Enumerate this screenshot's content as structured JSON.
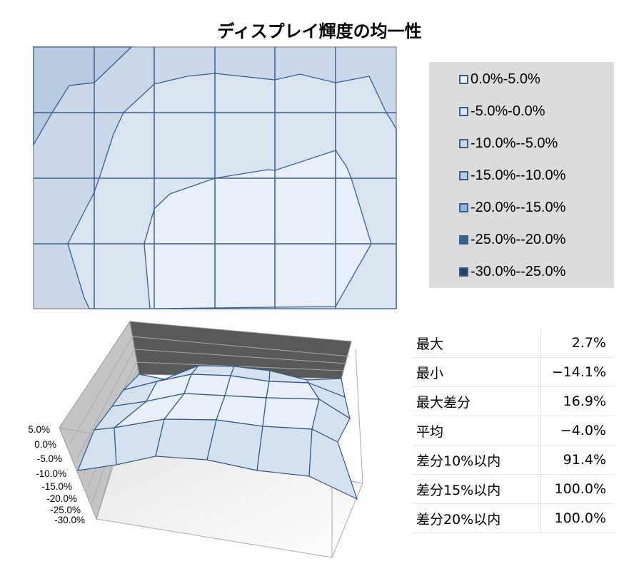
{
  "title": "ディスプレイ輝度の均一性",
  "chart_data": [
    {
      "type": "contour",
      "grid": true,
      "legend_position": "right",
      "legend": [
        {
          "label": "0.0%-5.0%",
          "color": "#eef3fa"
        },
        {
          "label": "-5.0%-0.0%",
          "color": "#dce6f2"
        },
        {
          "label": "-10.0%--5.0%",
          "color": "#cad8ea"
        },
        {
          "label": "-15.0%--10.0%",
          "color": "#b9cde5"
        },
        {
          "label": "-20.0%--15.0%",
          "color": "#8eb4e3"
        },
        {
          "label": "-25.0%--20.0%",
          "color": "#376092"
        },
        {
          "label": "-30.0%--25.0%",
          "color": "#254061"
        }
      ]
    },
    {
      "type": "surface",
      "z_ticks": [
        "5.0%",
        "0.0%",
        "-5.0%",
        "-10.0%",
        "-15.0%",
        "-20.0%",
        "-25.0%",
        "-30.0%"
      ],
      "zlim": [
        -30,
        5
      ]
    }
  ],
  "stats": [
    {
      "label": "最大",
      "value": "2.7%"
    },
    {
      "label": "最小",
      "value": "−14.1%"
    },
    {
      "label": "最大差分",
      "value": "16.9%"
    },
    {
      "label": "平均",
      "value": "−4.0%"
    },
    {
      "label": "差分10%以内",
      "value": "91.4%"
    },
    {
      "label": "差分15%以内",
      "value": "100.0%"
    },
    {
      "label": "差分20%以内",
      "value": "100.0%"
    }
  ]
}
